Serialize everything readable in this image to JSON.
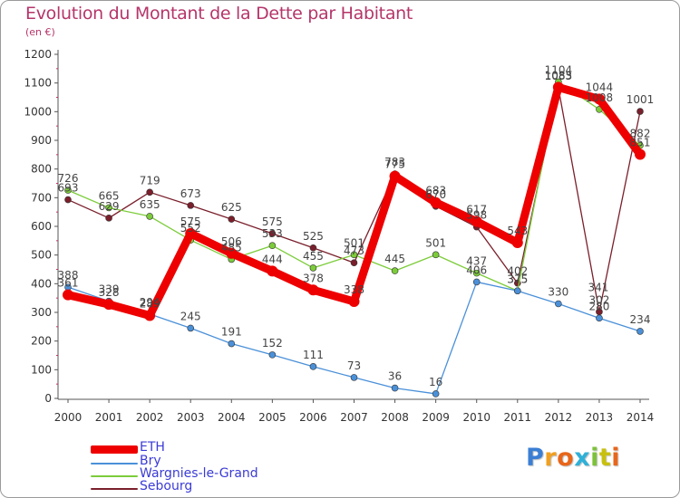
{
  "chart_data": {
    "type": "line",
    "title": "Evolution du Montant de la Dette par Habitant",
    "unit_label": "(en €)",
    "x": [
      "2000",
      "2001",
      "2002",
      "2003",
      "2004",
      "2005",
      "2006",
      "2007",
      "2008",
      "2009",
      "2010",
      "2011",
      "2012",
      "2013",
      "2014"
    ],
    "y_ticks": [
      "0",
      "100",
      "200",
      "300",
      "400",
      "500",
      "600",
      "700",
      "800",
      "900",
      "1000",
      "1100",
      "1200"
    ],
    "ylim": [
      0,
      1200
    ],
    "grid": false,
    "legend_position": "bottom-left",
    "series": [
      {
        "name": "Sebourg",
        "color": "#7a1f2b",
        "values": [
          693,
          629,
          719,
          673,
          625,
          575,
          525,
          473,
          783,
          670,
          598,
          402,
          1083,
          302,
          1001
        ],
        "labels": [
          "693",
          "629",
          "719",
          "673",
          "625",
          "575",
          "525",
          "473",
          "783",
          "670",
          "598",
          "402",
          "1083",
          "302",
          "1001"
        ]
      },
      {
        "name": "Wargnies-le-Grand",
        "color": "#7ccc3a",
        "values": [
          726,
          665,
          635,
          552,
          485,
          533,
          455,
          501,
          445,
          501,
          437,
          375,
          1104,
          1008,
          882
        ],
        "labels": [
          "726",
          "665",
          "635",
          "552",
          "485",
          "533",
          "455",
          "501",
          "445",
          "501",
          "437",
          "375",
          "1104",
          "1008",
          "882"
        ]
      },
      {
        "name": "Bry",
        "color": "#4a90d9",
        "values": [
          388,
          339,
          294,
          245,
          191,
          152,
          111,
          73,
          36,
          16,
          406,
          375,
          330,
          280,
          234
        ],
        "labels": [
          "388",
          "339",
          "294",
          "245",
          "191",
          "152",
          "111",
          "73",
          "36",
          "16",
          "406",
          "375",
          "330",
          "280",
          "234"
        ]
      },
      {
        "name": "ETH",
        "color": "#ee0000",
        "values": [
          361,
          328,
          289,
          575,
          506,
          444,
          378,
          338,
          775,
          683,
          617,
          543,
          1085,
          1044,
          851
        ],
        "labels": [
          "361",
          "328",
          "289",
          "575",
          "506",
          "444",
          "378",
          "338",
          "775",
          "683",
          "617",
          "543",
          "1085",
          "1044",
          "851"
        ]
      }
    ],
    "extra_labels": [
      "341"
    ]
  },
  "legend": {
    "items": [
      {
        "name": "ETH",
        "color": "#ee0000"
      },
      {
        "name": "Bry",
        "color": "#4a90d9"
      },
      {
        "name": "Wargnies-le-Grand",
        "color": "#7ccc3a"
      },
      {
        "name": "Sebourg",
        "color": "#7a1f2b"
      }
    ]
  },
  "logo": {
    "letters": [
      "P",
      "r",
      "o",
      "x",
      "i",
      "t",
      "i"
    ],
    "colors": [
      "#3b7fd4",
      "#f0a020",
      "#e8661a",
      "#2fb0d8",
      "#7cc23a",
      "#c8c010",
      "#e8661a"
    ]
  }
}
